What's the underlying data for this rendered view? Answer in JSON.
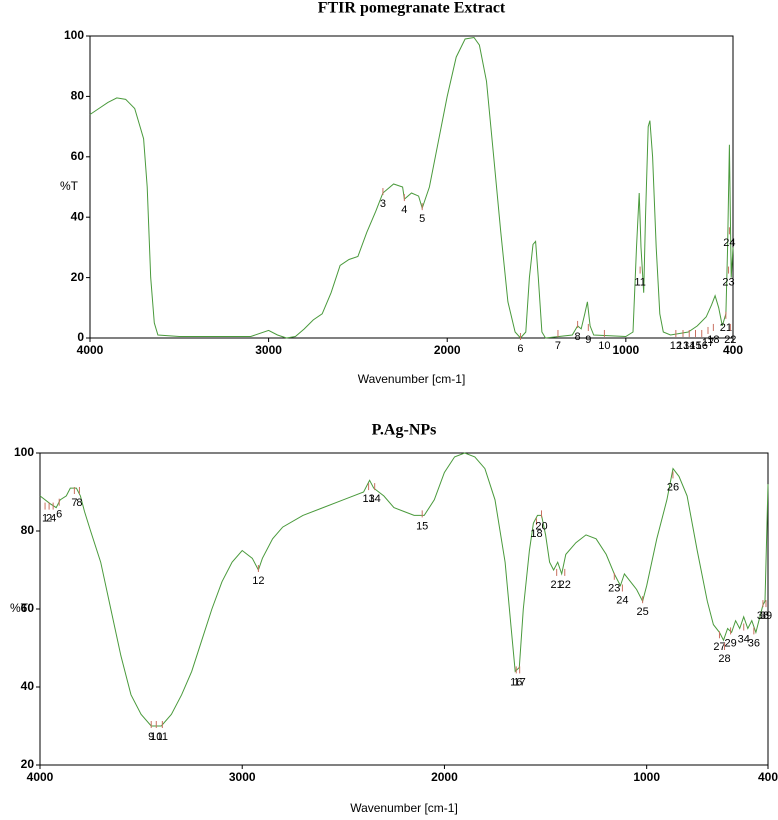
{
  "chart_data": [
    {
      "type": "line",
      "title": "FTIR pomegranate Extract",
      "xlabel": "Wavenumber [cm-1]",
      "ylabel": "%T",
      "xlim": [
        4000,
        400
      ],
      "xticks": [
        4000,
        3000,
        2000,
        1000,
        400
      ],
      "ylim": [
        0,
        100
      ],
      "yticks": [
        0,
        20,
        40,
        60,
        80,
        100
      ],
      "series": [
        {
          "color": "#4a9a3c",
          "x": [
            4000,
            3950,
            3900,
            3850,
            3800,
            3750,
            3700,
            3680,
            3660,
            3640,
            3620,
            3500,
            3100,
            3000,
            2950,
            2900,
            2850,
            2800,
            2750,
            2700,
            2650,
            2600,
            2550,
            2500,
            2450,
            2400,
            2360,
            2300,
            2250,
            2240,
            2200,
            2160,
            2140,
            2100,
            2050,
            2000,
            1950,
            1900,
            1850,
            1820,
            1780,
            1740,
            1700,
            1660,
            1620,
            1590,
            1560,
            1540,
            1520,
            1505,
            1490,
            1470,
            1450,
            1300,
            1270,
            1250,
            1230,
            1215,
            1200,
            1180,
            1000,
            960,
            940,
            925,
            915,
            900,
            890,
            875,
            865,
            850,
            830,
            810,
            790,
            750,
            650,
            600,
            550,
            520,
            500,
            480,
            460,
            440,
            430,
            420,
            410,
            400
          ],
          "values": [
            74,
            76,
            78,
            79.5,
            79,
            76,
            66,
            50,
            20,
            5,
            1,
            0.5,
            0.5,
            2.5,
            1,
            0,
            0.5,
            3,
            6,
            8,
            15,
            24,
            26,
            27,
            35,
            42,
            48,
            51,
            50,
            46,
            48,
            47,
            43,
            50,
            65,
            80,
            93,
            99,
            99.5,
            97,
            85,
            60,
            35,
            12,
            2,
            0,
            2,
            20,
            31,
            32,
            20,
            2,
            0,
            1,
            4,
            3,
            8,
            12,
            4,
            1,
            0.5,
            2,
            30,
            48,
            30,
            15,
            40,
            70,
            72,
            60,
            30,
            8,
            2,
            1,
            2,
            4,
            7,
            11,
            14,
            10,
            4,
            8,
            30,
            64,
            20,
            30
          ]
        }
      ],
      "peaks": [
        {
          "label": "3",
          "x": 2360,
          "y": 48
        },
        {
          "label": "4",
          "x": 2240,
          "y": 46
        },
        {
          "label": "5",
          "x": 2140,
          "y": 43
        },
        {
          "label": "6",
          "x": 1590,
          "y": 0
        },
        {
          "label": "7",
          "x": 1380,
          "y": 1
        },
        {
          "label": "8",
          "x": 1270,
          "y": 4
        },
        {
          "label": "9",
          "x": 1210,
          "y": 3
        },
        {
          "label": "10",
          "x": 1120,
          "y": 1
        },
        {
          "label": "11",
          "x": 920,
          "y": 22
        },
        {
          "label": "12",
          "x": 720,
          "y": 1
        },
        {
          "label": "13",
          "x": 680,
          "y": 1
        },
        {
          "label": "14",
          "x": 645,
          "y": 1
        },
        {
          "label": "15",
          "x": 610,
          "y": 1
        },
        {
          "label": "16",
          "x": 575,
          "y": 1
        },
        {
          "label": "17",
          "x": 540,
          "y": 2
        },
        {
          "label": "18",
          "x": 510,
          "y": 3
        },
        {
          "label": "21",
          "x": 440,
          "y": 7
        },
        {
          "label": "22",
          "x": 415,
          "y": 3
        },
        {
          "label": "23",
          "x": 425,
          "y": 22
        },
        {
          "label": "24",
          "x": 420,
          "y": 35
        }
      ]
    },
    {
      "type": "line",
      "title": "P.Ag-NPs",
      "xlabel": "Wavenumber [cm-1]",
      "ylabel": "%T",
      "xlim": [
        4000,
        400
      ],
      "xticks": [
        4000,
        3000,
        2000,
        1000,
        400
      ],
      "ylim": [
        20,
        100
      ],
      "yticks": [
        20,
        40,
        60,
        80,
        100
      ],
      "series": [
        {
          "color": "#4a9a3c",
          "x": [
            4000,
            3950,
            3920,
            3900,
            3870,
            3850,
            3820,
            3800,
            3780,
            3750,
            3700,
            3650,
            3600,
            3550,
            3500,
            3450,
            3400,
            3350,
            3300,
            3250,
            3200,
            3150,
            3100,
            3050,
            3000,
            2950,
            2920,
            2900,
            2850,
            2800,
            2700,
            2600,
            2500,
            2400,
            2370,
            2350,
            2300,
            2250,
            2200,
            2150,
            2100,
            2050,
            2000,
            1950,
            1900,
            1850,
            1800,
            1750,
            1700,
            1670,
            1650,
            1630,
            1610,
            1580,
            1560,
            1540,
            1520,
            1500,
            1480,
            1460,
            1440,
            1420,
            1400,
            1350,
            1300,
            1250,
            1200,
            1160,
            1130,
            1110,
            1080,
            1050,
            1020,
            1000,
            950,
            900,
            870,
            840,
            800,
            750,
            700,
            670,
            640,
            620,
            600,
            580,
            560,
            540,
            520,
            500,
            480,
            460,
            440,
            425,
            415,
            405,
            400
          ],
          "values": [
            89,
            87,
            86,
            88,
            89,
            91,
            91,
            89,
            85,
            80,
            72,
            60,
            48,
            38,
            33,
            30,
            30,
            33,
            38,
            44,
            52,
            60,
            67,
            72,
            75,
            73,
            70,
            73,
            78,
            81,
            84,
            86,
            88,
            90,
            93,
            91,
            89,
            86,
            85,
            84,
            84,
            88,
            95,
            99,
            100,
            99,
            96,
            88,
            72,
            55,
            44,
            45,
            60,
            75,
            82,
            84,
            84,
            79,
            72,
            70,
            72,
            69,
            74,
            77,
            79,
            78,
            74,
            69,
            66,
            69,
            67,
            65,
            62,
            66,
            78,
            88,
            96,
            94,
            89,
            75,
            62,
            56,
            54,
            52,
            55,
            54,
            57,
            55,
            58,
            55,
            57,
            54,
            58,
            61,
            62,
            82,
            92
          ]
        }
      ],
      "peaks": [
        {
          "label": "1",
          "x": 3975,
          "y": 86
        },
        {
          "label": "2",
          "x": 3955,
          "y": 86
        },
        {
          "label": "4",
          "x": 3935,
          "y": 86
        },
        {
          "label": "6",
          "x": 3905,
          "y": 87
        },
        {
          "label": "7",
          "x": 3830,
          "y": 90
        },
        {
          "label": "8",
          "x": 3805,
          "y": 90
        },
        {
          "label": "9",
          "x": 3450,
          "y": 30
        },
        {
          "label": "10",
          "x": 3425,
          "y": 30
        },
        {
          "label": "11",
          "x": 3395,
          "y": 30
        },
        {
          "label": "12",
          "x": 2920,
          "y": 70
        },
        {
          "label": "13",
          "x": 2375,
          "y": 91
        },
        {
          "label": "14",
          "x": 2345,
          "y": 91
        },
        {
          "label": "15",
          "x": 2110,
          "y": 84
        },
        {
          "label": "16",
          "x": 1645,
          "y": 44
        },
        {
          "label": "17",
          "x": 1628,
          "y": 44
        },
        {
          "label": "18",
          "x": 1545,
          "y": 82
        },
        {
          "label": "20",
          "x": 1520,
          "y": 84
        },
        {
          "label": "21",
          "x": 1445,
          "y": 69
        },
        {
          "label": "22",
          "x": 1405,
          "y": 69
        },
        {
          "label": "23",
          "x": 1160,
          "y": 68
        },
        {
          "label": "24",
          "x": 1120,
          "y": 65
        },
        {
          "label": "25",
          "x": 1020,
          "y": 62
        },
        {
          "label": "26",
          "x": 870,
          "y": 94
        },
        {
          "label": "27",
          "x": 640,
          "y": 53
        },
        {
          "label": "28",
          "x": 615,
          "y": 50
        },
        {
          "label": "29",
          "x": 585,
          "y": 54
        },
        {
          "label": "34",
          "x": 520,
          "y": 55
        },
        {
          "label": "36",
          "x": 470,
          "y": 54
        },
        {
          "label": "38",
          "x": 425,
          "y": 61
        },
        {
          "label": "39",
          "x": 410,
          "y": 61
        }
      ]
    }
  ]
}
